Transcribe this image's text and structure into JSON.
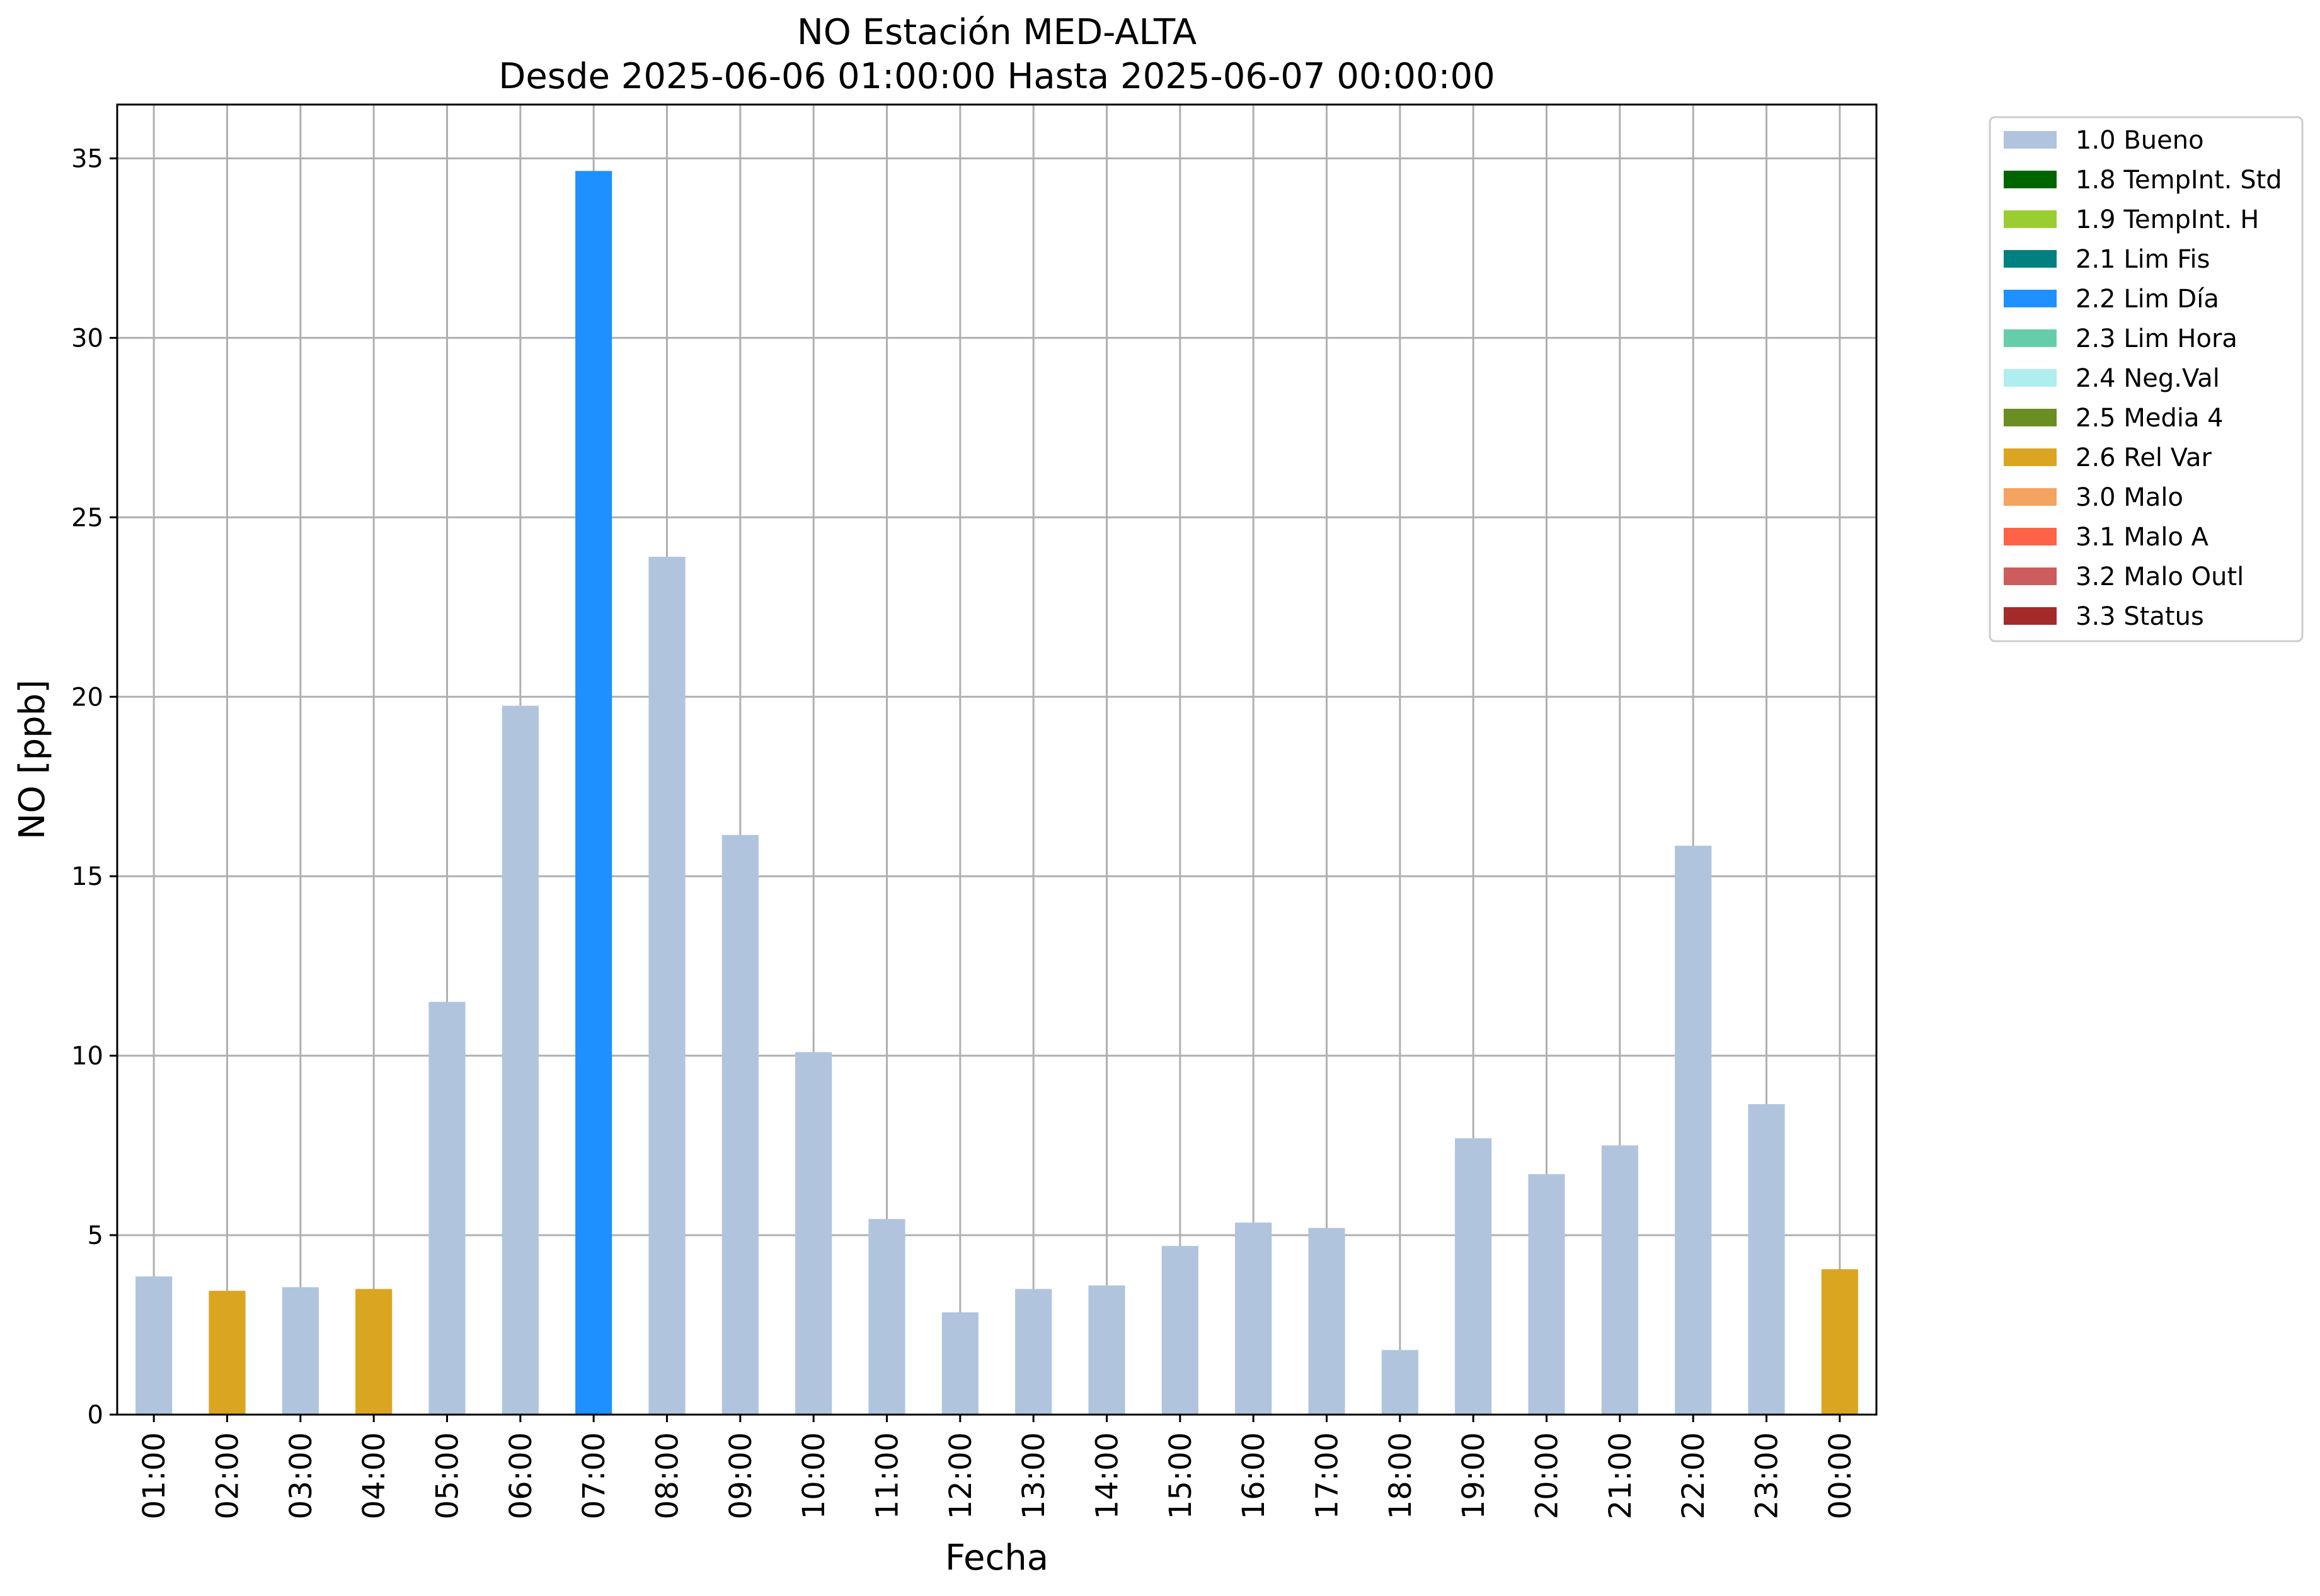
{
  "chart_data": {
    "type": "bar",
    "title": "NO Estación MED-ALTA",
    "subtitle": "Desde 2025-06-06 01:00:00 Hasta 2025-06-07 00:00:00",
    "xlabel": "Fecha",
    "ylabel": "NO [ppb]",
    "ylim": [
      0,
      36.5
    ],
    "yticks": [
      0,
      5,
      10,
      15,
      20,
      25,
      30,
      35
    ],
    "grid": true,
    "legend_position": "outside-top-right",
    "categories": [
      "01:00",
      "02:00",
      "03:00",
      "04:00",
      "05:00",
      "06:00",
      "07:00",
      "08:00",
      "09:00",
      "10:00",
      "11:00",
      "12:00",
      "13:00",
      "14:00",
      "15:00",
      "16:00",
      "17:00",
      "18:00",
      "19:00",
      "20:00",
      "21:00",
      "22:00",
      "23:00",
      "00:00"
    ],
    "values": [
      3.85,
      3.45,
      3.55,
      3.5,
      11.5,
      19.75,
      34.65,
      23.9,
      16.15,
      10.1,
      5.45,
      2.85,
      3.5,
      3.6,
      4.7,
      5.35,
      5.2,
      1.8,
      7.7,
      6.7,
      7.5,
      15.85,
      8.65,
      4.05
    ],
    "flags": [
      "1.0 Bueno",
      "2.6 Rel Var",
      "1.0 Bueno",
      "2.6 Rel Var",
      "1.0 Bueno",
      "1.0 Bueno",
      "2.2 Lim Día",
      "1.0 Bueno",
      "1.0 Bueno",
      "1.0 Bueno",
      "1.0 Bueno",
      "1.0 Bueno",
      "1.0 Bueno",
      "1.0 Bueno",
      "1.0 Bueno",
      "1.0 Bueno",
      "1.0 Bueno",
      "1.0 Bueno",
      "1.0 Bueno",
      "1.0 Bueno",
      "1.0 Bueno",
      "1.0 Bueno",
      "1.0 Bueno",
      "2.6 Rel Var"
    ],
    "legend": [
      {
        "name": "1.0 Bueno",
        "color": "#b0c4de"
      },
      {
        "name": "1.8 TempInt. Std",
        "color": "#006400"
      },
      {
        "name": "1.9 TempInt. H",
        "color": "#9acd32"
      },
      {
        "name": "2.1 Lim Fis",
        "color": "#008080"
      },
      {
        "name": "2.2 Lim Día",
        "color": "#1e90ff"
      },
      {
        "name": "2.3 Lim Hora",
        "color": "#66cdaa"
      },
      {
        "name": "2.4 Neg.Val",
        "color": "#afeeee"
      },
      {
        "name": "2.5 Media 4",
        "color": "#6b8e23"
      },
      {
        "name": "2.6 Rel Var",
        "color": "#daa520"
      },
      {
        "name": "3.0 Malo",
        "color": "#f4a460"
      },
      {
        "name": "3.1 Malo A",
        "color": "#ff6347"
      },
      {
        "name": "3.2 Malo Outl",
        "color": "#cd5c5c"
      },
      {
        "name": "3.3 Status",
        "color": "#a52a2a"
      }
    ]
  }
}
